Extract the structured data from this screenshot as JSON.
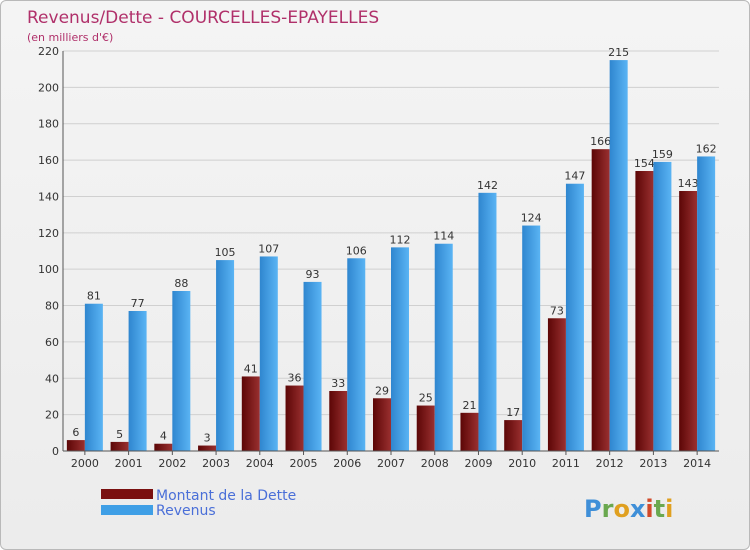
{
  "chart_data": {
    "type": "bar",
    "title": "Revenus/Dette - COURCELLES-EPAYELLES",
    "subtitle": "(en milliers d'€)",
    "categories": [
      "2000",
      "2001",
      "2002",
      "2003",
      "2004",
      "2005",
      "2006",
      "2007",
      "2008",
      "2009",
      "2010",
      "2011",
      "2012",
      "2013",
      "2014"
    ],
    "series": [
      {
        "name": "Montant de la Dette",
        "color": "#7a1010",
        "values": [
          6,
          5,
          4,
          3,
          41,
          36,
          33,
          29,
          25,
          21,
          17,
          73,
          166,
          154,
          143
        ]
      },
      {
        "name": "Revenus",
        "color": "#3f9fe6",
        "values": [
          81,
          77,
          88,
          105,
          107,
          93,
          106,
          112,
          114,
          142,
          124,
          147,
          215,
          159,
          162
        ]
      }
    ],
    "ylim": [
      0,
      220
    ],
    "yticks": [
      0,
      20,
      40,
      60,
      80,
      100,
      120,
      140,
      160,
      180,
      200,
      220
    ],
    "grid": true,
    "legend": "bottom-left"
  },
  "logo": {
    "text": "Proxiti"
  }
}
